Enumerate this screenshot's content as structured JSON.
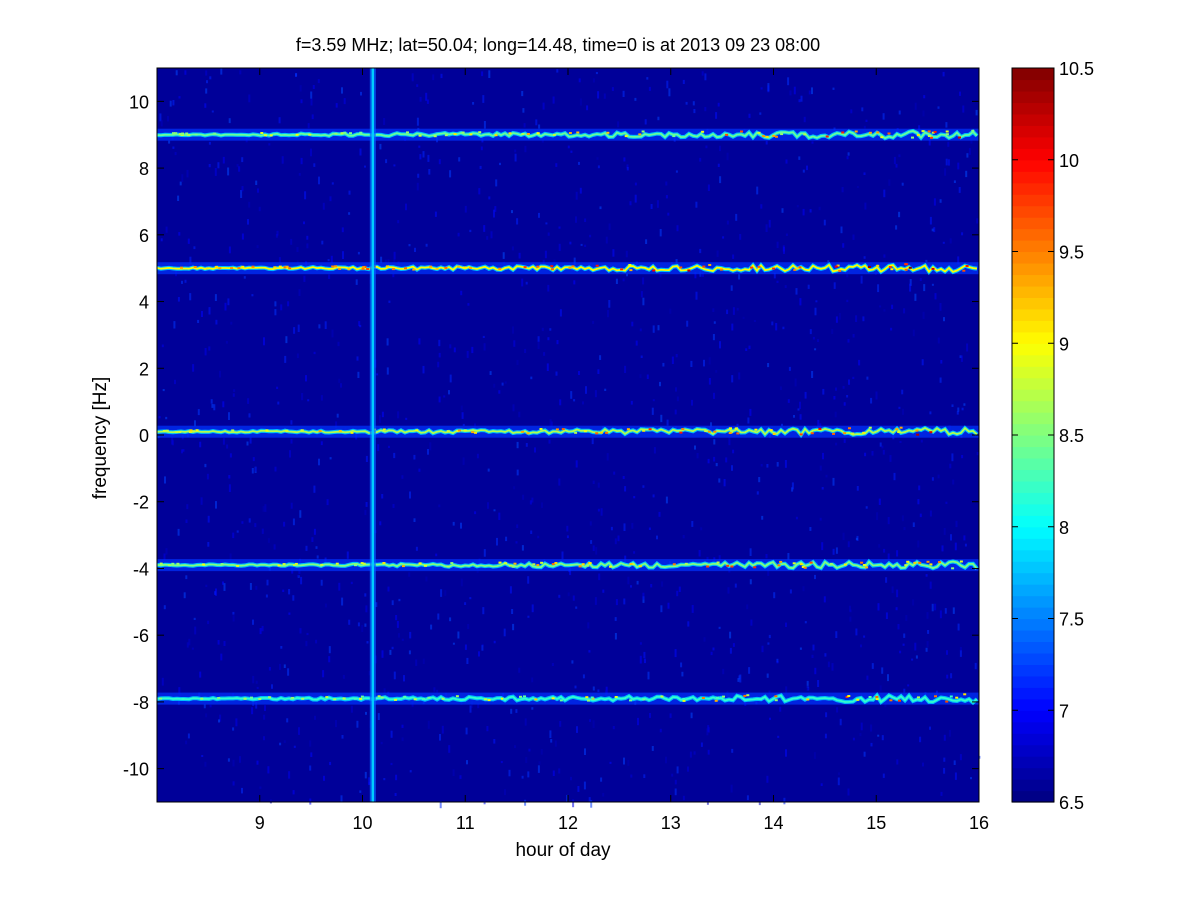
{
  "chart_data": {
    "type": "heatmap",
    "title": "f=3.59 MHz;  lat=50.04; long=14.48, time=0 is at 2013 09 23 08:00",
    "xlabel": "hour of day",
    "ylabel": "frequency [Hz]",
    "xlim": [
      8,
      16
    ],
    "ylim": [
      -11,
      11
    ],
    "xticks": [
      "9",
      "10",
      "11",
      "12",
      "13",
      "14",
      "15",
      "16"
    ],
    "yticks": [
      "10",
      "8",
      "6",
      "4",
      "2",
      "0",
      "-2",
      "-4",
      "-6",
      "-8",
      "-10"
    ],
    "colorbar": {
      "range": [
        6.5,
        10.5
      ],
      "ticks": [
        "10.5",
        "10",
        "9.5",
        "9",
        "8.5",
        "8",
        "7.5",
        "7",
        "6.5"
      ],
      "colormap": "jet"
    },
    "background_level": 6.6,
    "bands": [
      {
        "frequency": 9.0,
        "level": 8.4
      },
      {
        "frequency": 5.0,
        "level": 9.0
      },
      {
        "frequency": 0.1,
        "level": 8.7
      },
      {
        "frequency": -3.9,
        "level": 8.5
      },
      {
        "frequency": -7.9,
        "level": 8.2
      }
    ],
    "vertical_event": {
      "hour": 10.1,
      "level": 7.8
    },
    "grid": false
  }
}
